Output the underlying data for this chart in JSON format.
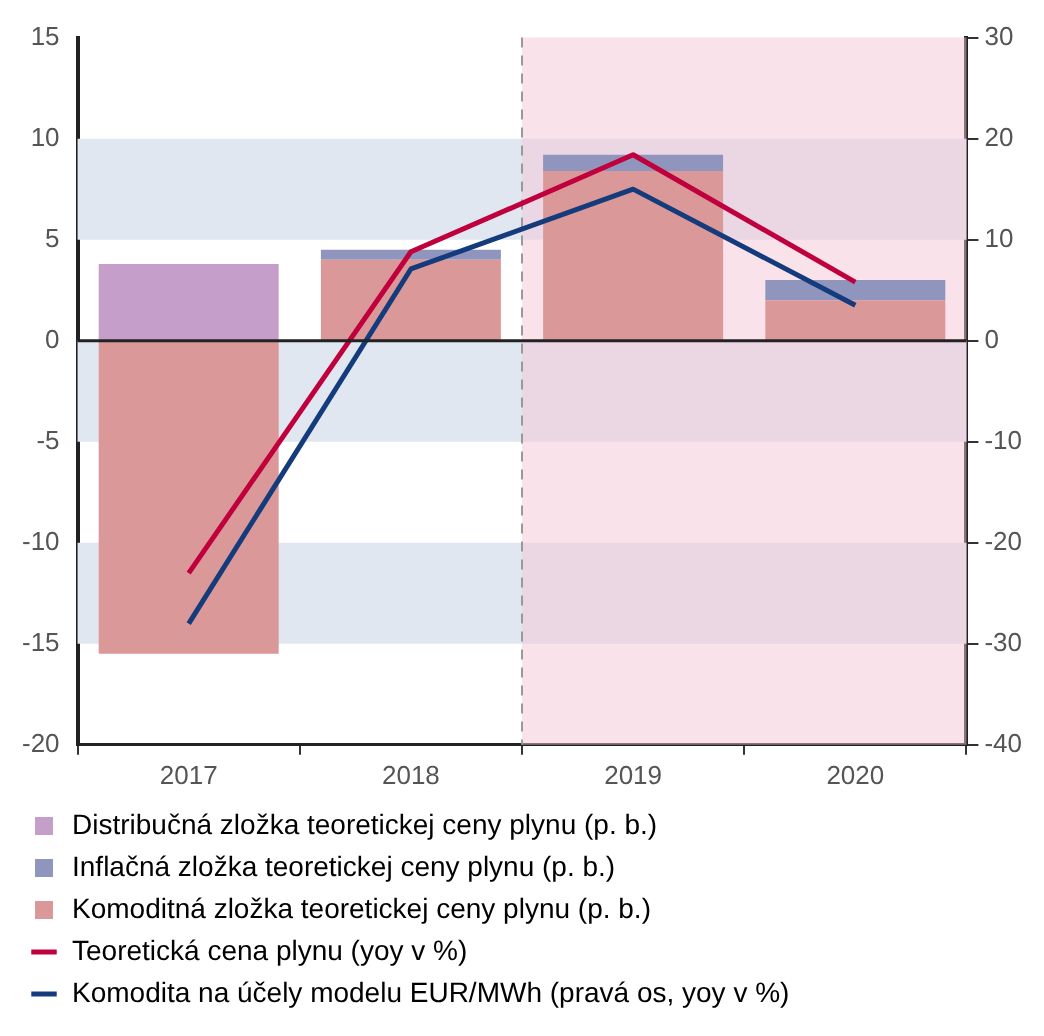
{
  "chart_data": {
    "type": "bar",
    "stacked": true,
    "categories": [
      "2017",
      "2018",
      "2019",
      "2020"
    ],
    "series": [
      {
        "name": "Komoditná zložka teoretickej ceny plynu (p. b.)",
        "color": "#db9899",
        "values": [
          -15.5,
          4.0,
          8.4,
          2.0
        ]
      },
      {
        "name": "Inflačná zložka teoretickej ceny plynu (p. b.)",
        "color": "#8f95bd",
        "values": [
          0,
          0.5,
          0.8,
          1.0
        ]
      },
      {
        "name": "Distribučná zložka teoretickej ceny plynu (p. b.)",
        "color": "#c59fc9",
        "values": [
          3.8,
          0,
          0,
          0
        ]
      },
      {
        "name": "Teoretická cena plynu (yoy v %)",
        "type": "line",
        "color": "#c0003c",
        "values": [
          -11.5,
          4.4,
          9.2,
          2.9
        ]
      },
      {
        "name": "Komodita na účely modelu EUR/MWh (pravá os, yoy v %)",
        "type": "line",
        "axis": "y2",
        "color": "#143c7c",
        "values": [
          -28,
          7.1,
          15,
          3.5
        ]
      }
    ],
    "ylim": [
      -20,
      15
    ],
    "yticks": [
      -20,
      -15,
      -10,
      -5,
      0,
      5,
      10,
      15
    ],
    "y2lim": [
      -40,
      30
    ],
    "y2ticks": [
      -40,
      -30,
      -20,
      -10,
      0,
      10,
      20,
      30
    ],
    "bands": [
      {
        "axis": "y",
        "from": 5,
        "to": 10,
        "color": "#e1e7f1"
      },
      {
        "axis": "y",
        "from": -5,
        "to": 0,
        "color": "#e1e7f1"
      },
      {
        "axis": "y",
        "from": -15,
        "to": -10,
        "color": "#e1e7f1"
      },
      {
        "axis": "x",
        "from": "2019",
        "to": "2020",
        "color": "#f5c6d8"
      }
    ],
    "ref_lines": [
      {
        "axis": "x",
        "value": "2019",
        "color": "#999999",
        "line_style": "dashed"
      }
    ],
    "legend": "bottom",
    "marker": "none",
    "line_style": "solid"
  }
}
